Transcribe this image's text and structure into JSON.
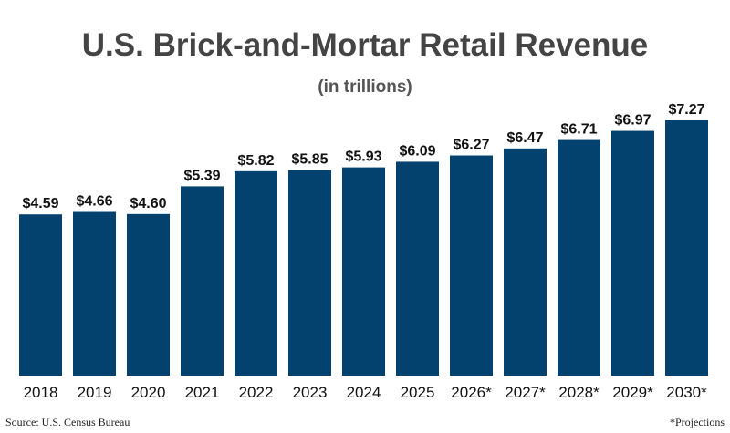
{
  "chart_data": {
    "type": "bar",
    "title": "U.S. Brick-and-Mortar Retail Revenue",
    "subtitle": "(in trillions)",
    "categories": [
      "2018",
      "2019",
      "2020",
      "2021",
      "2022",
      "2023",
      "2024",
      "2025",
      "2026*",
      "2027*",
      "2028*",
      "2029*",
      "2030*"
    ],
    "values": [
      4.59,
      4.66,
      4.6,
      5.39,
      5.82,
      5.85,
      5.93,
      6.09,
      6.27,
      6.47,
      6.71,
      6.97,
      7.27
    ],
    "data_labels": [
      "$4.59",
      "$4.66",
      "$4.60",
      "$5.39",
      "$5.82",
      "$5.85",
      "$5.93",
      "$6.09",
      "$6.27",
      "$6.47",
      "$6.71",
      "$6.97",
      "$7.27"
    ],
    "ylim": [
      0,
      7.27
    ],
    "grid": false,
    "bar_color": "#03416F",
    "baseline_color": "#bbbbbb"
  },
  "footer": {
    "source": "Source: U.S. Census Bureau",
    "note": "*Projections"
  }
}
